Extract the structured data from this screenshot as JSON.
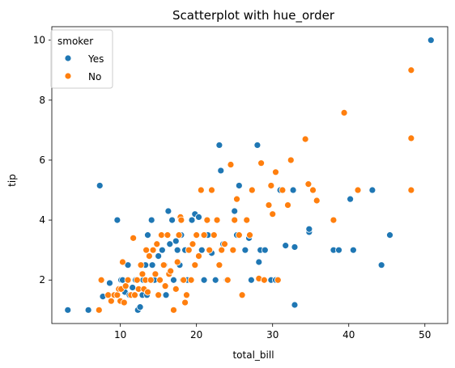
{
  "chart_data": {
    "type": "scatter",
    "title": "Scatterplot with hue_order",
    "xlabel": "total_bill",
    "ylabel": "tip",
    "xlim": [
      1.0,
      53.0
    ],
    "ylim": [
      0.55,
      10.45
    ],
    "xticks": [
      "10",
      "20",
      "30",
      "40",
      "50"
    ],
    "xtick_values": [
      10,
      20,
      30,
      40,
      50
    ],
    "yticks": [
      "2",
      "4",
      "6",
      "8",
      "10"
    ],
    "ytick_values": [
      2,
      4,
      6,
      8,
      10
    ],
    "grid": false,
    "legend": {
      "title": "smoker",
      "placement": "top-left",
      "entries": [
        "Yes",
        "No"
      ]
    },
    "series": [
      {
        "name": "Yes",
        "color": "#1f77b4",
        "points": [
          [
            3.1,
            1.0
          ],
          [
            5.8,
            1.0
          ],
          [
            7.3,
            5.15
          ],
          [
            7.7,
            1.45
          ],
          [
            8.6,
            1.9
          ],
          [
            9.6,
            4.0
          ],
          [
            10.1,
            2.0
          ],
          [
            10.3,
            2.0
          ],
          [
            10.6,
            1.6
          ],
          [
            11.0,
            2.5
          ],
          [
            11.2,
            1.5
          ],
          [
            11.6,
            1.75
          ],
          [
            12.0,
            2.0
          ],
          [
            12.3,
            1.0
          ],
          [
            12.6,
            1.1
          ],
          [
            12.9,
            1.5
          ],
          [
            13.0,
            2.0
          ],
          [
            13.3,
            2.5
          ],
          [
            13.5,
            1.5
          ],
          [
            13.6,
            3.5
          ],
          [
            14.1,
            4.0
          ],
          [
            14.2,
            2.5
          ],
          [
            14.5,
            2.0
          ],
          [
            15.0,
            2.8
          ],
          [
            15.5,
            3.0
          ],
          [
            15.8,
            2.5
          ],
          [
            16.0,
            1.5
          ],
          [
            16.3,
            4.3
          ],
          [
            16.5,
            3.2
          ],
          [
            16.8,
            4.0
          ],
          [
            17.0,
            2.0
          ],
          [
            17.3,
            3.3
          ],
          [
            17.5,
            3.0
          ],
          [
            17.8,
            2.5
          ],
          [
            18.0,
            3.5
          ],
          [
            18.2,
            2.0
          ],
          [
            18.5,
            3.0
          ],
          [
            18.8,
            2.0
          ],
          [
            19.0,
            3.0
          ],
          [
            19.4,
            4.0
          ],
          [
            19.8,
            4.2
          ],
          [
            20.3,
            4.1
          ],
          [
            20.7,
            3.0
          ],
          [
            21.0,
            2.0
          ],
          [
            21.5,
            3.5
          ],
          [
            22.0,
            2.9
          ],
          [
            22.5,
            2.0
          ],
          [
            23.0,
            6.5
          ],
          [
            23.2,
            5.65
          ],
          [
            23.5,
            3.2
          ],
          [
            24.0,
            2.0
          ],
          [
            25.0,
            4.3
          ],
          [
            25.3,
            3.5
          ],
          [
            25.6,
            5.15
          ],
          [
            26.4,
            3.0
          ],
          [
            26.9,
            3.4
          ],
          [
            27.2,
            2.0
          ],
          [
            28.0,
            6.5
          ],
          [
            28.2,
            2.6
          ],
          [
            28.4,
            3.0
          ],
          [
            29.0,
            3.0
          ],
          [
            29.8,
            2.0
          ],
          [
            30.4,
            2.0
          ],
          [
            31.0,
            5.0
          ],
          [
            31.7,
            3.15
          ],
          [
            32.7,
            5.0
          ],
          [
            32.9,
            1.17
          ],
          [
            32.9,
            3.1
          ],
          [
            34.8,
            3.6
          ],
          [
            34.8,
            3.7
          ],
          [
            38.0,
            3.0
          ],
          [
            38.7,
            3.0
          ],
          [
            40.2,
            4.7
          ],
          [
            40.6,
            3.0
          ],
          [
            43.1,
            5.0
          ],
          [
            44.3,
            2.5
          ],
          [
            45.4,
            3.5
          ],
          [
            50.8,
            10.0
          ]
        ]
      },
      {
        "name": "No",
        "color": "#ff7f0e",
        "points": [
          [
            7.2,
            1.0
          ],
          [
            7.5,
            2.0
          ],
          [
            8.4,
            1.5
          ],
          [
            8.8,
            1.3
          ],
          [
            9.2,
            1.5
          ],
          [
            9.6,
            1.5
          ],
          [
            9.8,
            1.7
          ],
          [
            10.0,
            1.3
          ],
          [
            10.1,
            1.7
          ],
          [
            10.3,
            2.6
          ],
          [
            10.5,
            1.25
          ],
          [
            10.7,
            1.8
          ],
          [
            11.0,
            2.0
          ],
          [
            11.4,
            1.5
          ],
          [
            11.7,
            3.4
          ],
          [
            11.9,
            1.5
          ],
          [
            12.2,
            2.0
          ],
          [
            12.4,
            1.7
          ],
          [
            12.7,
            2.5
          ],
          [
            12.9,
            2.2
          ],
          [
            13.1,
            1.7
          ],
          [
            13.3,
            2.0
          ],
          [
            13.4,
            3.0
          ],
          [
            13.6,
            1.6
          ],
          [
            13.8,
            2.8
          ],
          [
            14.0,
            2.0
          ],
          [
            14.3,
            3.0
          ],
          [
            14.6,
            2.2
          ],
          [
            14.8,
            3.2
          ],
          [
            15.0,
            1.5
          ],
          [
            15.2,
            2.0
          ],
          [
            15.4,
            3.5
          ],
          [
            15.7,
            2.5
          ],
          [
            15.9,
            1.8
          ],
          [
            16.2,
            3.5
          ],
          [
            16.4,
            2.2
          ],
          [
            16.6,
            2.3
          ],
          [
            17.0,
            1.0
          ],
          [
            17.3,
            1.7
          ],
          [
            17.5,
            2.6
          ],
          [
            17.7,
            3.5
          ],
          [
            17.9,
            4.1
          ],
          [
            18.0,
            4.0
          ],
          [
            18.3,
            2.0
          ],
          [
            18.5,
            1.25
          ],
          [
            18.7,
            1.5
          ],
          [
            19.0,
            3.0
          ],
          [
            19.3,
            2.0
          ],
          [
            19.5,
            3.2
          ],
          [
            19.8,
            2.5
          ],
          [
            20.0,
            3.5
          ],
          [
            20.3,
            2.8
          ],
          [
            20.6,
            5.0
          ],
          [
            21.0,
            3.5
          ],
          [
            21.4,
            4.0
          ],
          [
            21.7,
            3.0
          ],
          [
            22.0,
            5.0
          ],
          [
            22.3,
            3.5
          ],
          [
            22.7,
            4.0
          ],
          [
            23.0,
            2.5
          ],
          [
            23.3,
            3.0
          ],
          [
            23.7,
            3.2
          ],
          [
            24.1,
            2.0
          ],
          [
            24.5,
            5.85
          ],
          [
            24.8,
            3.0
          ],
          [
            25.0,
            4.0
          ],
          [
            25.3,
            4.7
          ],
          [
            25.6,
            3.5
          ],
          [
            26.0,
            1.5
          ],
          [
            26.6,
            4.0
          ],
          [
            27.0,
            3.5
          ],
          [
            27.3,
            5.0
          ],
          [
            28.2,
            2.05
          ],
          [
            28.5,
            5.9
          ],
          [
            28.9,
            2.0
          ],
          [
            29.5,
            4.5
          ],
          [
            29.8,
            5.15
          ],
          [
            30.0,
            4.2
          ],
          [
            30.4,
            5.6
          ],
          [
            30.7,
            2.0
          ],
          [
            31.3,
            5.0
          ],
          [
            32.0,
            4.5
          ],
          [
            32.4,
            6.0
          ],
          [
            34.3,
            6.7
          ],
          [
            34.7,
            5.2
          ],
          [
            35.3,
            5.0
          ],
          [
            35.8,
            4.65
          ],
          [
            38.0,
            4.0
          ],
          [
            39.4,
            7.58
          ],
          [
            41.2,
            5.0
          ],
          [
            48.2,
            9.0
          ],
          [
            48.2,
            6.73
          ],
          [
            48.2,
            5.0
          ]
        ]
      }
    ]
  }
}
